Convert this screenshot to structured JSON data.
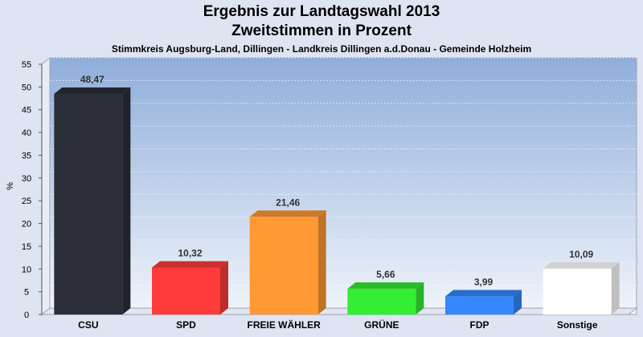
{
  "title": "Ergebnis zur Landtagswahl 2013",
  "subtitle": "Zweitstimmen in Prozent",
  "subsubtitle": "Stimmkreis Augsburg-Land, Dillingen - Landkreis Dillingen a.d.Donau - Gemeinde Holzheim",
  "chart_data": {
    "type": "bar",
    "title": "Ergebnis zur Landtagswahl 2013",
    "ylabel": "%",
    "xlabel": "",
    "ylim": [
      0,
      55
    ],
    "yticks": [
      0,
      5,
      10,
      15,
      20,
      25,
      30,
      35,
      40,
      45,
      50,
      55
    ],
    "categories": [
      "CSU",
      "SPD",
      "FREIE WÄHLER",
      "GRÜNE",
      "FDP",
      "Sonstige"
    ],
    "values": [
      48.47,
      10.32,
      21.46,
      5.66,
      3.99,
      10.09
    ],
    "value_labels": [
      "48,47",
      "10,32",
      "21,46",
      "5,66",
      "3,99",
      "10,09"
    ],
    "colors": [
      "#2b2e38",
      "#ff3b3b",
      "#ff9933",
      "#33ee33",
      "#3388ff",
      "#ffffff"
    ],
    "grid": true,
    "legend": "none"
  }
}
